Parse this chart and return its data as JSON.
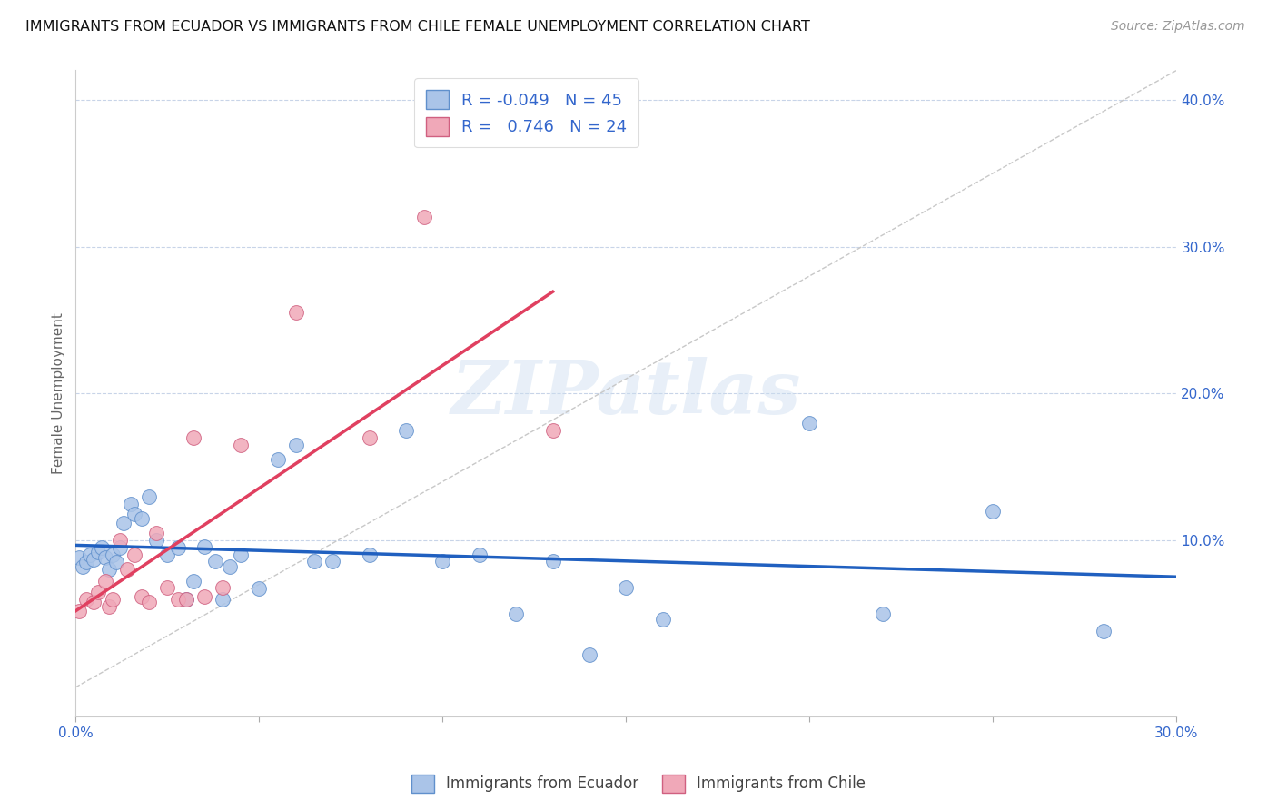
{
  "title": "IMMIGRANTS FROM ECUADOR VS IMMIGRANTS FROM CHILE FEMALE UNEMPLOYMENT CORRELATION CHART",
  "source": "Source: ZipAtlas.com",
  "ylabel": "Female Unemployment",
  "xlim": [
    0.0,
    0.3
  ],
  "ylim": [
    -0.02,
    0.42
  ],
  "xticks": [
    0.0,
    0.05,
    0.1,
    0.15,
    0.2,
    0.25,
    0.3
  ],
  "xtick_labels_show": [
    "0.0%",
    "",
    "",
    "",
    "",
    "",
    "30.0%"
  ],
  "yticks_right": [
    0.1,
    0.2,
    0.3,
    0.4
  ],
  "ytick_labels_right": [
    "10.0%",
    "20.0%",
    "30.0%",
    "40.0%"
  ],
  "grid_yticks": [
    0.1,
    0.2,
    0.3,
    0.4
  ],
  "ecuador_color": "#aac4e8",
  "chile_color": "#f0a8b8",
  "ecuador_edge": "#6090cc",
  "chile_edge": "#d06080",
  "trend_ecuador_color": "#2060c0",
  "trend_chile_color": "#e04060",
  "diag_color": "#c8c8c8",
  "legend_ecuador_R": "-0.049",
  "legend_ecuador_N": "45",
  "legend_chile_R": "0.746",
  "legend_chile_N": "24",
  "watermark": "ZIPatlas",
  "ecuador_x": [
    0.001,
    0.002,
    0.003,
    0.004,
    0.005,
    0.006,
    0.007,
    0.008,
    0.009,
    0.01,
    0.011,
    0.012,
    0.013,
    0.015,
    0.016,
    0.018,
    0.02,
    0.022,
    0.025,
    0.028,
    0.03,
    0.032,
    0.035,
    0.038,
    0.04,
    0.042,
    0.045,
    0.05,
    0.055,
    0.06,
    0.065,
    0.07,
    0.08,
    0.09,
    0.1,
    0.11,
    0.12,
    0.13,
    0.14,
    0.15,
    0.16,
    0.2,
    0.22,
    0.25,
    0.28
  ],
  "ecuador_y": [
    0.088,
    0.082,
    0.085,
    0.09,
    0.087,
    0.092,
    0.095,
    0.088,
    0.08,
    0.09,
    0.085,
    0.095,
    0.112,
    0.125,
    0.118,
    0.115,
    0.13,
    0.1,
    0.09,
    0.095,
    0.06,
    0.072,
    0.096,
    0.086,
    0.06,
    0.082,
    0.09,
    0.067,
    0.155,
    0.165,
    0.086,
    0.086,
    0.09,
    0.175,
    0.086,
    0.09,
    0.05,
    0.086,
    0.022,
    0.068,
    0.046,
    0.18,
    0.05,
    0.12,
    0.038
  ],
  "chile_x": [
    0.001,
    0.003,
    0.005,
    0.006,
    0.008,
    0.009,
    0.01,
    0.012,
    0.014,
    0.016,
    0.018,
    0.02,
    0.022,
    0.025,
    0.028,
    0.03,
    0.032,
    0.035,
    0.04,
    0.045,
    0.06,
    0.08,
    0.095,
    0.13
  ],
  "chile_y": [
    0.052,
    0.06,
    0.058,
    0.065,
    0.072,
    0.055,
    0.06,
    0.1,
    0.08,
    0.09,
    0.062,
    0.058,
    0.105,
    0.068,
    0.06,
    0.06,
    0.17,
    0.062,
    0.068,
    0.165,
    0.255,
    0.17,
    0.32,
    0.175
  ]
}
